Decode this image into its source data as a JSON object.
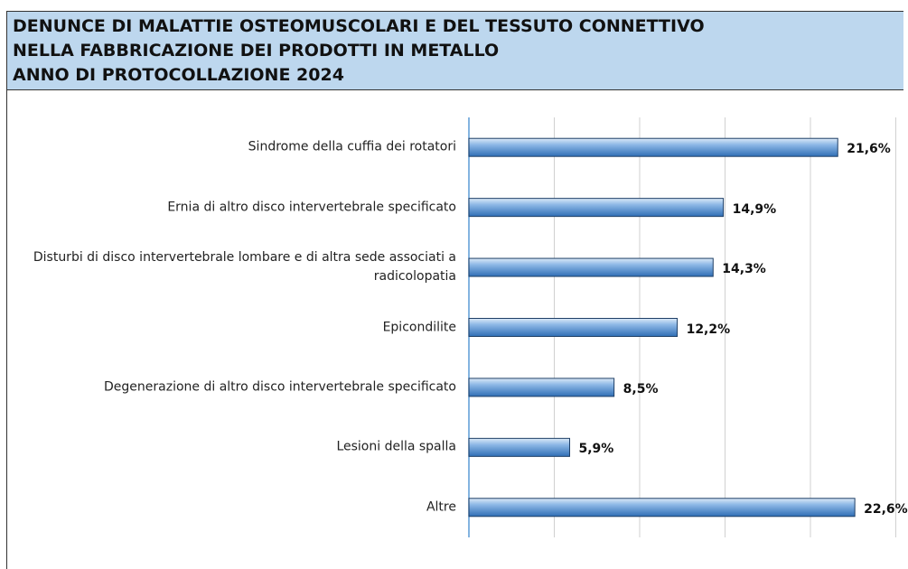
{
  "chart_data": {
    "type": "barh",
    "title": "DENUNCE DI MALATTIE OSTEOMUSCOLARI E DEL TESSUTO CONNETTIVO\nNELLA FABBRICAZIONE DEI PRODOTTI IN METALLO\nANNO DI PROTOCOLLAZIONE 2024",
    "categories": [
      "Sindrome della cuffia dei rotatori",
      "Ernia di altro disco intervertebrale specificato",
      "Disturbi di disco intervertebrale lombare e di altra sede associati a radicolopatia",
      "Epicondilite",
      "Degenerazione di altro disco intervertebrale specificato",
      "Lesioni della spalla",
      "Altre"
    ],
    "values": [
      21.6,
      14.9,
      14.3,
      12.2,
      8.5,
      5.9,
      22.6
    ],
    "value_labels": [
      "21,6%",
      "14,9%",
      "14,3%",
      "12,2%",
      "8,5%",
      "5,9%",
      "22,6%"
    ],
    "color": "#5b9bd5",
    "xlim": [
      0,
      25
    ],
    "xticks": [
      0,
      5,
      10,
      15,
      20,
      25
    ],
    "grid": true
  }
}
